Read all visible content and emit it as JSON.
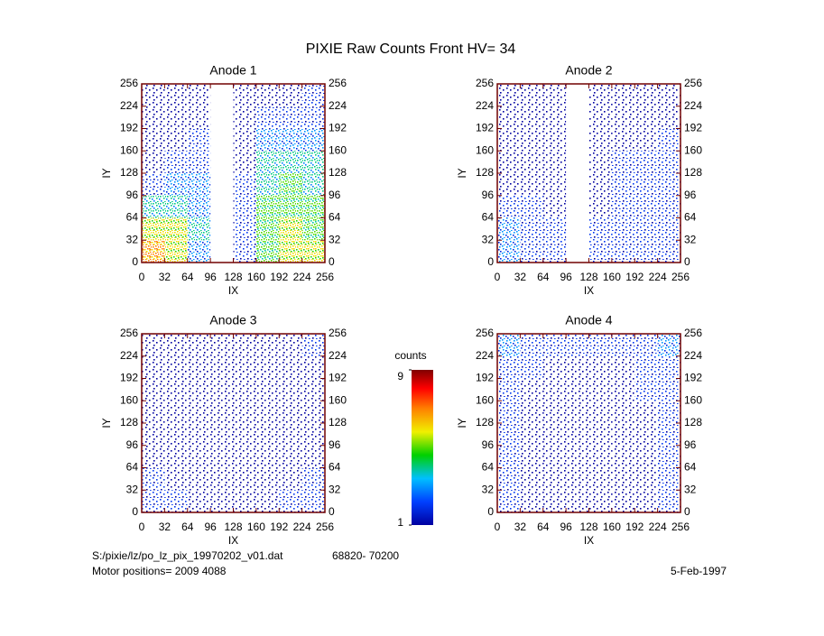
{
  "title": "PIXIE Raw Counts Front HV= 34",
  "chart_data": [
    {
      "type": "heatmap",
      "title": "Anode 1",
      "xlabel": "IX",
      "ylabel": "IY",
      "xlim": [
        0,
        256
      ],
      "ylim": [
        0,
        256
      ],
      "xticks": [
        0,
        32,
        64,
        96,
        128,
        160,
        192,
        224,
        256
      ],
      "yticks": [
        0,
        32,
        64,
        96,
        128,
        160,
        192,
        224,
        256
      ],
      "values": [
        [
          7,
          6,
          3,
          null,
          2,
          5,
          6,
          6
        ],
        [
          6,
          6,
          4,
          null,
          2,
          5,
          6,
          5
        ],
        [
          4,
          4,
          3,
          null,
          2,
          5,
          5,
          5
        ],
        [
          2,
          3,
          3,
          null,
          2,
          4,
          5,
          4
        ],
        [
          1,
          2,
          2,
          null,
          1,
          4,
          4,
          4
        ],
        [
          1,
          1,
          2,
          null,
          1,
          3,
          3,
          3
        ],
        [
          1,
          1,
          1,
          null,
          1,
          2,
          2,
          2
        ],
        [
          1,
          1,
          1,
          null,
          1,
          1,
          1,
          2
        ]
      ]
    },
    {
      "type": "heatmap",
      "title": "Anode 2",
      "xlabel": "IX",
      "ylabel": "IY",
      "xlim": [
        0,
        256
      ],
      "ylim": [
        0,
        256
      ],
      "xticks": [
        0,
        32,
        64,
        96,
        128,
        160,
        192,
        224,
        256
      ],
      "yticks": [
        0,
        32,
        64,
        96,
        128,
        160,
        192,
        224,
        256
      ],
      "values": [
        [
          3,
          2,
          2,
          null,
          2,
          2,
          2,
          2
        ],
        [
          3,
          2,
          2,
          null,
          2,
          2,
          2,
          2
        ],
        [
          2,
          2,
          1,
          null,
          1,
          2,
          2,
          2
        ],
        [
          1,
          1,
          1,
          null,
          1,
          2,
          2,
          2
        ],
        [
          1,
          1,
          1,
          null,
          1,
          2,
          2,
          2
        ],
        [
          1,
          1,
          1,
          null,
          1,
          1,
          1,
          2
        ],
        [
          1,
          1,
          1,
          null,
          1,
          1,
          1,
          1
        ],
        [
          1,
          1,
          1,
          null,
          1,
          1,
          1,
          1
        ]
      ]
    },
    {
      "type": "heatmap",
      "title": "Anode 3",
      "xlabel": "IX",
      "ylabel": "IY",
      "xlim": [
        0,
        256
      ],
      "ylim": [
        0,
        256
      ],
      "xticks": [
        0,
        32,
        64,
        96,
        128,
        160,
        192,
        224,
        256
      ],
      "yticks": [
        0,
        32,
        64,
        96,
        128,
        160,
        192,
        224,
        256
      ],
      "values": [
        [
          2,
          2,
          1,
          1,
          1,
          1,
          2,
          2
        ],
        [
          2,
          1,
          1,
          1,
          1,
          1,
          1,
          2
        ],
        [
          1,
          1,
          1,
          1,
          1,
          1,
          1,
          1
        ],
        [
          1,
          1,
          1,
          1,
          1,
          1,
          1,
          1
        ],
        [
          1,
          1,
          1,
          1,
          1,
          1,
          1,
          1
        ],
        [
          1,
          1,
          1,
          1,
          1,
          1,
          1,
          1
        ],
        [
          1,
          1,
          1,
          1,
          1,
          1,
          1,
          1
        ],
        [
          1,
          1,
          1,
          1,
          1,
          1,
          1,
          2
        ]
      ]
    },
    {
      "type": "heatmap",
      "title": "Anode 4",
      "xlabel": "IX",
      "ylabel": "IY",
      "xlim": [
        0,
        256
      ],
      "ylim": [
        0,
        256
      ],
      "xticks": [
        0,
        32,
        64,
        96,
        128,
        160,
        192,
        224,
        256
      ],
      "yticks": [
        0,
        32,
        64,
        96,
        128,
        160,
        192,
        224,
        256
      ],
      "values": [
        [
          2,
          1,
          1,
          1,
          1,
          1,
          1,
          2
        ],
        [
          2,
          1,
          1,
          1,
          1,
          1,
          1,
          2
        ],
        [
          2,
          1,
          1,
          1,
          1,
          1,
          1,
          2
        ],
        [
          2,
          1,
          1,
          1,
          1,
          1,
          1,
          2
        ],
        [
          2,
          1,
          1,
          1,
          1,
          1,
          1,
          2
        ],
        [
          2,
          1,
          1,
          1,
          1,
          1,
          2,
          2
        ],
        [
          2,
          2,
          1,
          1,
          1,
          1,
          2,
          2
        ],
        [
          3,
          2,
          2,
          2,
          2,
          2,
          2,
          3
        ]
      ]
    }
  ],
  "colorbar": {
    "label": "counts",
    "range": [
      1,
      9
    ],
    "ticks": [
      1,
      9
    ]
  },
  "footer": {
    "file": "S:/pixie/lz/po_lz_pix_19970202_v01.dat",
    "span": "68820- 70200",
    "motor": "Motor positions= 2009 4088",
    "date": "5-Feb-1997"
  }
}
